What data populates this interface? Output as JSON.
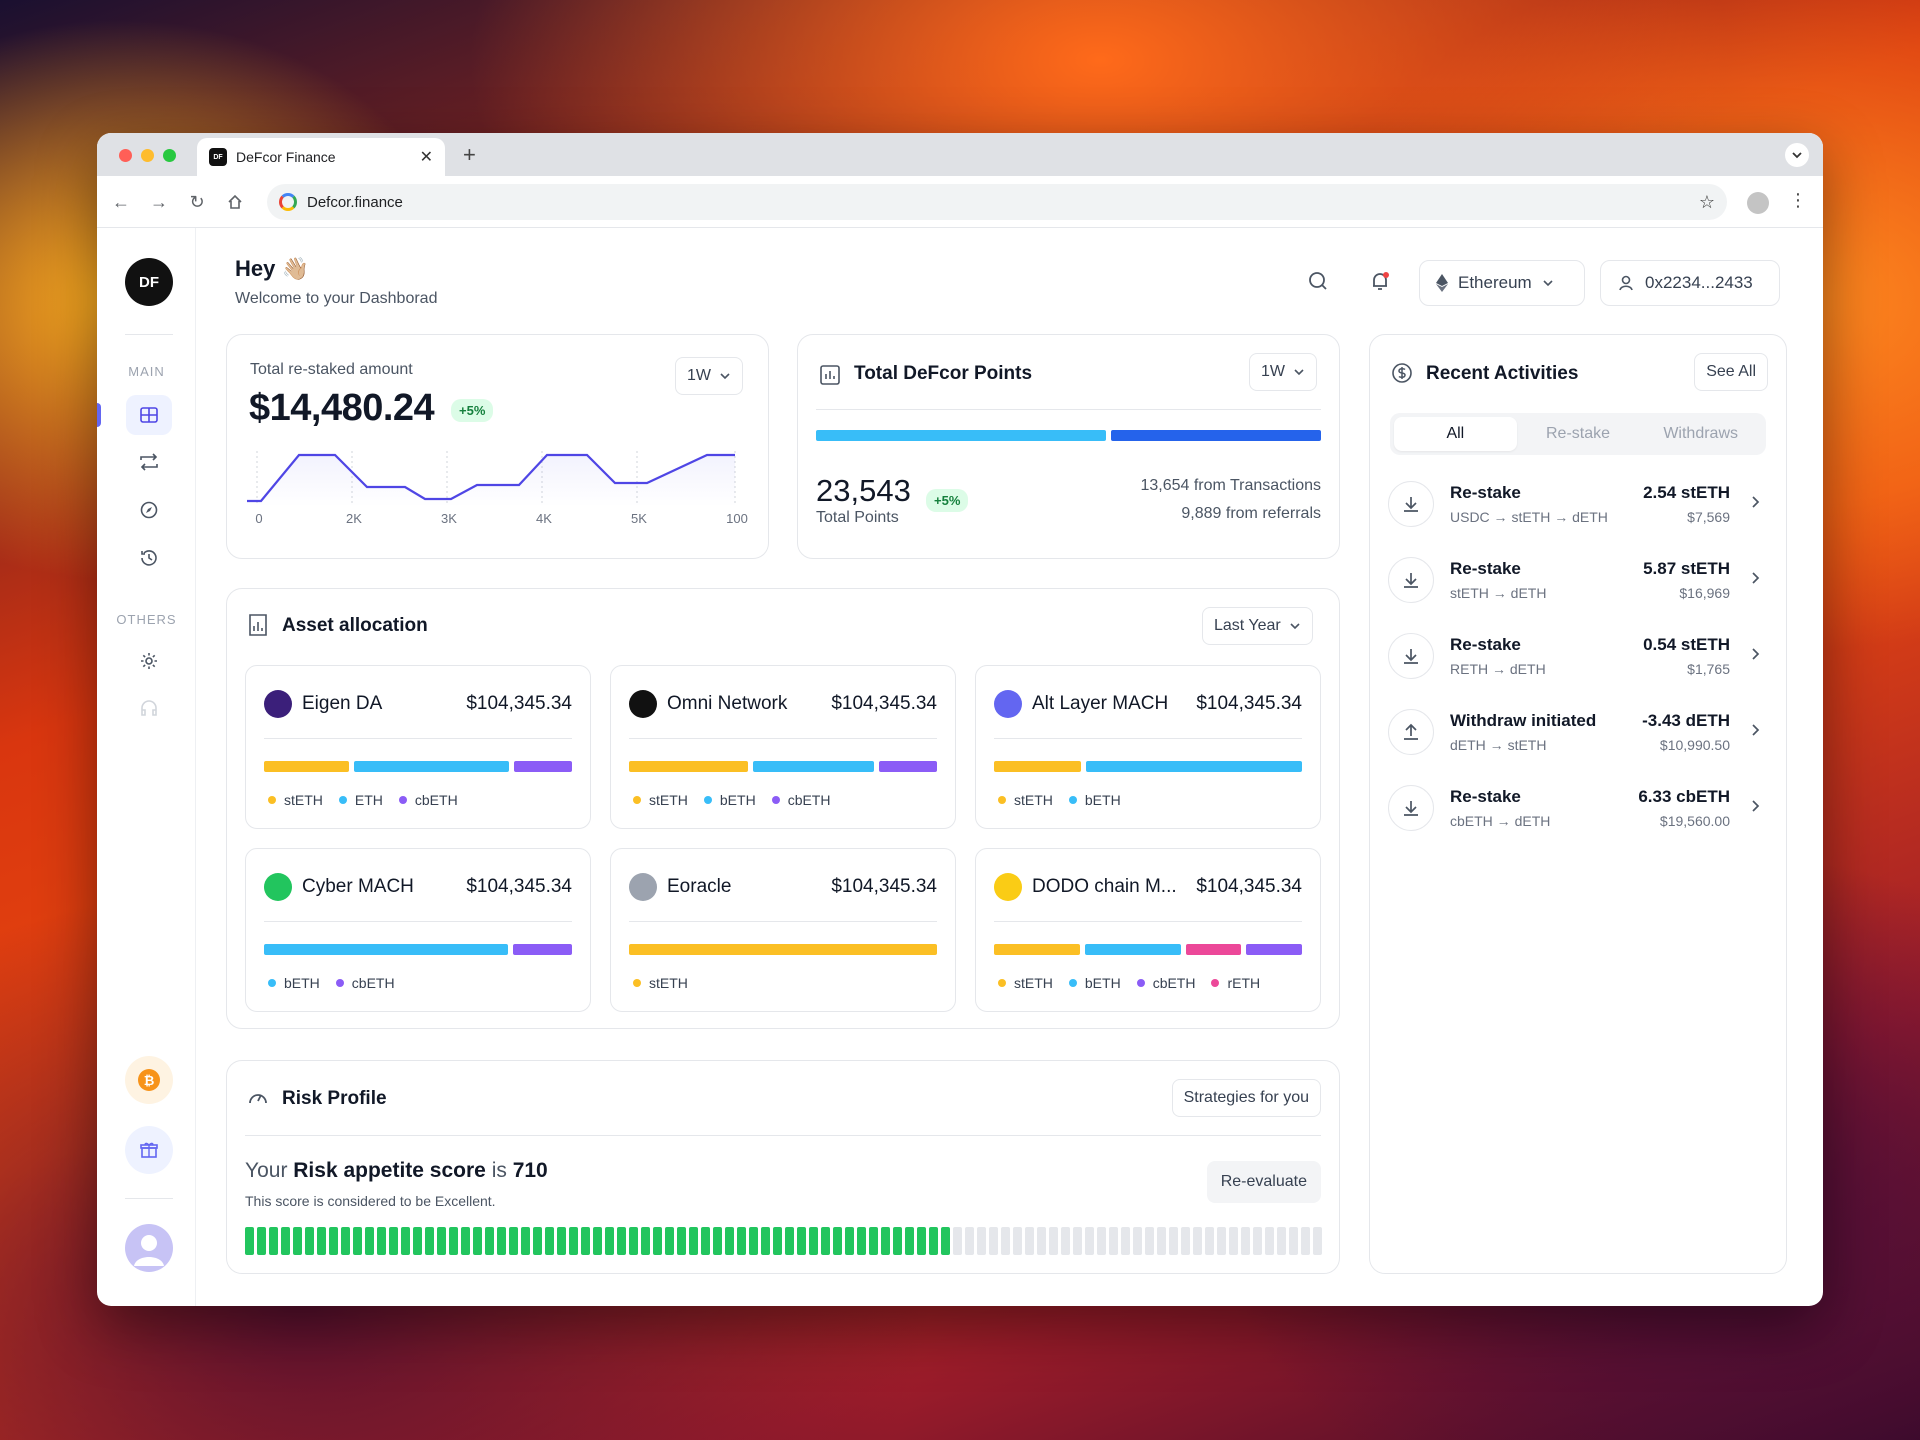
{
  "browser": {
    "tab_title": "DeFcor Finance",
    "tab_favicon": "DF",
    "url": "Defcor.finance"
  },
  "sidebar": {
    "logo": "DF",
    "main_label": "MAIN",
    "others_label": "OTHERS"
  },
  "header": {
    "greeting": "Hey 👋🏼",
    "subtitle": "Welcome to your Dashborad",
    "network": "Ethereum",
    "wallet": "0x2234...2433"
  },
  "restaked": {
    "label": "Total re-staked amount",
    "amount": "$14,480.24",
    "change": "+5%",
    "period": "1W",
    "chart_ticks": [
      "0",
      "2K",
      "3K",
      "4K",
      "5K",
      "100"
    ]
  },
  "points": {
    "title": "Total DeFcor Points",
    "period": "1W",
    "value": "23,543",
    "label": "Total Points",
    "change": "+5%",
    "transactions": "13,654 from Transactions",
    "referrals": "9,889 from referrals",
    "transactions_share": 0.58,
    "colors": {
      "transactions": "#38bdf8",
      "referrals": "#2563eb"
    }
  },
  "assets": {
    "title": "Asset allocation",
    "period": "Last Year",
    "items": [
      {
        "name": "Eigen DA",
        "value": "$104,345.34",
        "logo_color": "#3b1f7a",
        "segments": [
          {
            "label": "stETH",
            "color": "#fbbf24",
            "w": 28
          },
          {
            "label": "ETH",
            "color": "#38bdf8",
            "w": 51
          },
          {
            "label": "cbETH",
            "color": "#8b5cf6",
            "w": 19
          }
        ]
      },
      {
        "name": "Omni Network",
        "value": "$104,345.34",
        "logo_color": "#111111",
        "segments": [
          {
            "label": "stETH",
            "color": "#fbbf24",
            "w": 39
          },
          {
            "label": "bETH",
            "color": "#38bdf8",
            "w": 40
          },
          {
            "label": "cbETH",
            "color": "#8b5cf6",
            "w": 19
          }
        ]
      },
      {
        "name": "Alt Layer MACH",
        "value": "$104,345.34",
        "logo_color": "#6366f1",
        "segments": [
          {
            "label": "stETH",
            "color": "#fbbf24",
            "w": 28
          },
          {
            "label": "bETH",
            "color": "#38bdf8",
            "w": 70
          }
        ]
      },
      {
        "name": "Cyber MACH",
        "value": "$104,345.34",
        "logo_color": "#22c55e",
        "segments": [
          {
            "label": "bETH",
            "color": "#38bdf8",
            "w": 79
          },
          {
            "label": "cbETH",
            "color": "#8b5cf6",
            "w": 19
          }
        ]
      },
      {
        "name": "Eoracle",
        "value": "$104,345.34",
        "logo_color": "#9ca3af",
        "segments": [
          {
            "label": "stETH",
            "color": "#fbbf24",
            "w": 100
          }
        ]
      },
      {
        "name": "DODO chain M...",
        "value": "$104,345.34",
        "logo_color": "#facc15",
        "segments": [
          {
            "label": "stETH",
            "color": "#fbbf24",
            "w": 28
          },
          {
            "label": "bETH",
            "color": "#38bdf8",
            "w": 31
          },
          {
            "label": "cbETH",
            "color": "#ec4899",
            "w": 18
          },
          {
            "label": "rETH",
            "color": "#8b5cf6",
            "w": 18
          }
        ]
      }
    ],
    "legend_overrides": [
      null,
      null,
      null,
      null,
      null,
      [
        {
          "label": "stETH",
          "color": "#fbbf24"
        },
        {
          "label": "bETH",
          "color": "#38bdf8"
        },
        {
          "label": "cbETH",
          "color": "#8b5cf6"
        },
        {
          "label": "rETH",
          "color": "#ec4899"
        }
      ]
    ]
  },
  "risk": {
    "title": "Risk Profile",
    "strategies": "Strategies for you",
    "prefix": "Your ",
    "bold": "Risk appetite score",
    "mid": " is ",
    "score": "710",
    "description": "This score is considered to be Excellent.",
    "reevaluate": "Re-evaluate",
    "filled_fraction": 0.66,
    "colors": {
      "filled": "#22c55e",
      "empty": "#e5e7eb"
    }
  },
  "activities": {
    "title": "Recent Activities",
    "see_all": "See All",
    "tabs": [
      "All",
      "Re-stake",
      "Withdraws"
    ],
    "items": [
      {
        "type": "Re-stake",
        "direction": "down",
        "route": "USDC → stETH → dETH",
        "amount": "2.54 stETH",
        "usd": "$7,569"
      },
      {
        "type": "Re-stake",
        "direction": "down",
        "route": "stETH → dETH",
        "amount": "5.87 stETH",
        "usd": "$16,969"
      },
      {
        "type": "Re-stake",
        "direction": "down",
        "route": "RETH → dETH",
        "amount": "0.54 stETH",
        "usd": "$1,765"
      },
      {
        "type": "Withdraw initiated",
        "direction": "up",
        "route": "dETH → stETH",
        "amount": "-3.43 dETH",
        "usd": "$10,990.50"
      },
      {
        "type": "Re-stake",
        "direction": "down",
        "route": "cbETH → dETH",
        "amount": "6.33 cbETH",
        "usd": "$19,560.00"
      }
    ]
  }
}
